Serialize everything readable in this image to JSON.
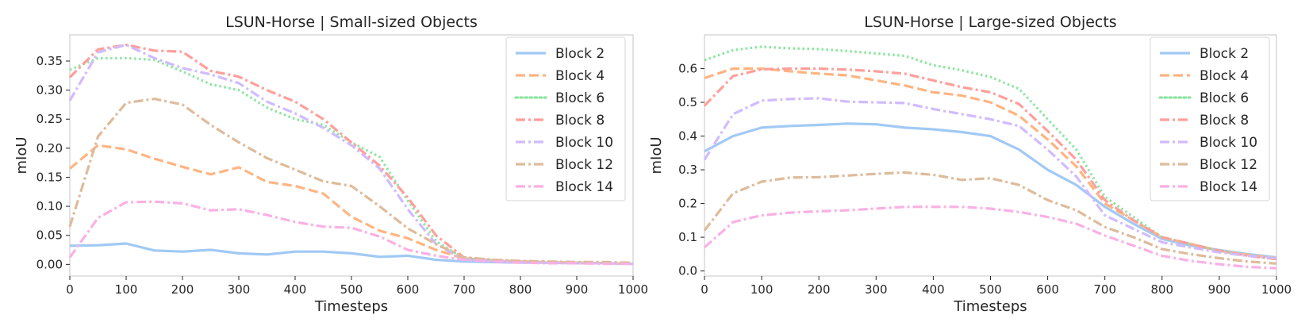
{
  "chart_data": [
    {
      "type": "line",
      "title": "LSUN-Horse | Small-sized Objects",
      "xlabel": "Timesteps",
      "ylabel": "mIoU",
      "xlim": [
        0,
        1000
      ],
      "ylim": [
        -0.02,
        0.395
      ],
      "xticks": [
        0,
        100,
        200,
        300,
        400,
        500,
        600,
        700,
        800,
        900,
        1000
      ],
      "xtick_labels": [
        "0",
        "100",
        "200",
        "300",
        "400",
        "500",
        "600",
        "700",
        "800",
        "900",
        "1000"
      ],
      "yticks": [
        0,
        0.05,
        0.1,
        0.15,
        0.2,
        0.25,
        0.3,
        0.35
      ],
      "ytick_labels": [
        "0.00",
        "0.05",
        "0.10",
        "0.15",
        "0.20",
        "0.25",
        "0.30",
        "0.35"
      ],
      "legend_position": "top-right",
      "x": [
        0,
        50,
        100,
        150,
        200,
        250,
        300,
        350,
        400,
        450,
        500,
        550,
        600,
        650,
        700,
        750,
        800,
        850,
        900,
        950,
        1000
      ],
      "series": [
        {
          "name": "Block 2",
          "color": "#a1c9f4",
          "dash": "solid",
          "values": [
            0.032,
            0.033,
            0.036,
            0.024,
            0.022,
            0.025,
            0.019,
            0.017,
            0.022,
            0.022,
            0.019,
            0.013,
            0.015,
            0.008,
            0.005,
            0.004,
            0.003,
            0.003,
            0.002,
            0.002,
            0.001
          ]
        },
        {
          "name": "Block 4",
          "color": "#ffb482",
          "dash": "dashed",
          "values": [
            0.165,
            0.205,
            0.198,
            0.182,
            0.168,
            0.155,
            0.167,
            0.142,
            0.135,
            0.122,
            0.082,
            0.058,
            0.045,
            0.025,
            0.01,
            0.007,
            0.005,
            0.004,
            0.003,
            0.002,
            0.001
          ]
        },
        {
          "name": "Block 6",
          "color": "#8de5a1",
          "dash": "dotted",
          "values": [
            0.335,
            0.355,
            0.355,
            0.352,
            0.332,
            0.31,
            0.3,
            0.27,
            0.25,
            0.24,
            0.21,
            0.185,
            0.11,
            0.04,
            0.01,
            0.007,
            0.005,
            0.004,
            0.003,
            0.002,
            0.001
          ]
        },
        {
          "name": "Block 8",
          "color": "#ff9f9b",
          "dash": "dashdot",
          "values": [
            0.322,
            0.37,
            0.378,
            0.368,
            0.366,
            0.333,
            0.323,
            0.3,
            0.28,
            0.25,
            0.21,
            0.17,
            0.115,
            0.05,
            0.012,
            0.008,
            0.005,
            0.004,
            0.003,
            0.002,
            0.001
          ]
        },
        {
          "name": "Block 10",
          "color": "#d0bbff",
          "dash": "dashdot",
          "values": [
            0.282,
            0.365,
            0.378,
            0.355,
            0.338,
            0.327,
            0.312,
            0.28,
            0.26,
            0.235,
            0.205,
            0.165,
            0.095,
            0.035,
            0.008,
            0.006,
            0.004,
            0.003,
            0.002,
            0.002,
            0.001
          ]
        },
        {
          "name": "Block 12",
          "color": "#debb9b",
          "dash": "dashdot",
          "values": [
            0.065,
            0.22,
            0.278,
            0.285,
            0.275,
            0.24,
            0.21,
            0.183,
            0.163,
            0.143,
            0.135,
            0.1,
            0.062,
            0.035,
            0.012,
            0.008,
            0.006,
            0.005,
            0.004,
            0.004,
            0.003
          ]
        },
        {
          "name": "Block 14",
          "color": "#fab0e4",
          "dash": "dashdot",
          "values": [
            0.012,
            0.08,
            0.107,
            0.108,
            0.105,
            0.093,
            0.095,
            0.085,
            0.073,
            0.065,
            0.063,
            0.048,
            0.025,
            0.015,
            0.008,
            0.005,
            0.003,
            0.002,
            0.002,
            0.001,
            0.001
          ]
        }
      ]
    },
    {
      "type": "line",
      "title": "LSUN-Horse | Large-sized Objects",
      "xlabel": "Timesteps",
      "ylabel": "mIoU",
      "xlim": [
        0,
        1000
      ],
      "ylim": [
        -0.015,
        0.7
      ],
      "xticks": [
        0,
        100,
        200,
        300,
        400,
        500,
        600,
        700,
        800,
        900,
        1000
      ],
      "xtick_labels": [
        "0",
        "100",
        "200",
        "300",
        "400",
        "500",
        "600",
        "700",
        "800",
        "900",
        "1000"
      ],
      "yticks": [
        0,
        0.1,
        0.2,
        0.3,
        0.4,
        0.5,
        0.6
      ],
      "ytick_labels": [
        "0.0",
        "0.1",
        "0.2",
        "0.3",
        "0.4",
        "0.5",
        "0.6"
      ],
      "legend_position": "top-right",
      "x": [
        0,
        50,
        100,
        150,
        200,
        250,
        300,
        350,
        400,
        450,
        500,
        550,
        600,
        650,
        700,
        750,
        800,
        850,
        900,
        950,
        1000
      ],
      "series": [
        {
          "name": "Block 2",
          "color": "#a1c9f4",
          "dash": "solid",
          "values": [
            0.355,
            0.4,
            0.425,
            0.43,
            0.433,
            0.437,
            0.435,
            0.425,
            0.42,
            0.412,
            0.4,
            0.36,
            0.3,
            0.255,
            0.19,
            0.14,
            0.095,
            0.075,
            0.062,
            0.05,
            0.04
          ]
        },
        {
          "name": "Block 4",
          "color": "#ffb482",
          "dash": "dashed",
          "values": [
            0.572,
            0.6,
            0.6,
            0.592,
            0.585,
            0.58,
            0.565,
            0.55,
            0.53,
            0.52,
            0.5,
            0.46,
            0.39,
            0.31,
            0.2,
            0.15,
            0.1,
            0.08,
            0.06,
            0.048,
            0.038
          ]
        },
        {
          "name": "Block 6",
          "color": "#8de5a1",
          "dash": "dotted",
          "values": [
            0.625,
            0.655,
            0.665,
            0.66,
            0.658,
            0.652,
            0.645,
            0.638,
            0.61,
            0.595,
            0.575,
            0.54,
            0.45,
            0.36,
            0.22,
            0.16,
            0.1,
            0.08,
            0.06,
            0.045,
            0.035
          ]
        },
        {
          "name": "Block 8",
          "color": "#ff9f9b",
          "dash": "dashdot",
          "values": [
            0.49,
            0.578,
            0.598,
            0.6,
            0.6,
            0.597,
            0.592,
            0.585,
            0.565,
            0.545,
            0.53,
            0.495,
            0.415,
            0.33,
            0.21,
            0.15,
            0.1,
            0.08,
            0.06,
            0.045,
            0.035
          ]
        },
        {
          "name": "Block 10",
          "color": "#d0bbff",
          "dash": "dashdot",
          "values": [
            0.33,
            0.465,
            0.505,
            0.51,
            0.512,
            0.502,
            0.5,
            0.498,
            0.48,
            0.465,
            0.45,
            0.43,
            0.36,
            0.28,
            0.165,
            0.125,
            0.085,
            0.07,
            0.055,
            0.045,
            0.038
          ]
        },
        {
          "name": "Block 12",
          "color": "#debb9b",
          "dash": "dashdot",
          "values": [
            0.12,
            0.23,
            0.265,
            0.277,
            0.278,
            0.283,
            0.288,
            0.292,
            0.285,
            0.27,
            0.275,
            0.255,
            0.21,
            0.18,
            0.13,
            0.1,
            0.065,
            0.05,
            0.038,
            0.028,
            0.022
          ]
        },
        {
          "name": "Block 14",
          "color": "#fab0e4",
          "dash": "dashdot",
          "values": [
            0.07,
            0.145,
            0.165,
            0.173,
            0.177,
            0.18,
            0.185,
            0.19,
            0.19,
            0.19,
            0.185,
            0.175,
            0.16,
            0.14,
            0.105,
            0.075,
            0.045,
            0.03,
            0.02,
            0.012,
            0.008
          ]
        }
      ]
    }
  ]
}
